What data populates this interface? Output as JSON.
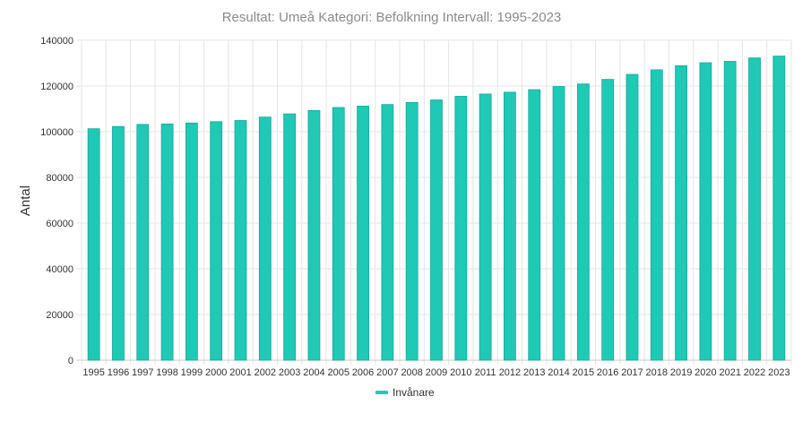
{
  "chart_data": {
    "type": "bar",
    "title": "Resultat: Umeå Kategori: Befolkning Intervall: 1995-2023",
    "ylabel": "Antal",
    "xlabel": "",
    "ylim": [
      0,
      140000
    ],
    "yticks": [
      0,
      20000,
      40000,
      60000,
      80000,
      100000,
      120000,
      140000
    ],
    "grid": true,
    "legend_position": "bottom",
    "categories": [
      "1995",
      "1996",
      "1997",
      "1998",
      "1999",
      "2000",
      "2001",
      "2002",
      "2003",
      "2004",
      "2005",
      "2006",
      "2007",
      "2008",
      "2009",
      "2010",
      "2011",
      "2012",
      "2013",
      "2014",
      "2015",
      "2016",
      "2017",
      "2018",
      "2019",
      "2020",
      "2021",
      "2022",
      "2023"
    ],
    "series": [
      {
        "name": "Invånare",
        "color": "#1fc9b5",
        "values": [
          101300,
          102300,
          103200,
          103400,
          103800,
          104400,
          104900,
          106400,
          107800,
          109300,
          110600,
          111200,
          111900,
          112800,
          113900,
          115500,
          116500,
          117300,
          118400,
          119800,
          120900,
          122900,
          125100,
          127100,
          128900,
          130200,
          130800,
          132300,
          133100
        ]
      }
    ]
  }
}
